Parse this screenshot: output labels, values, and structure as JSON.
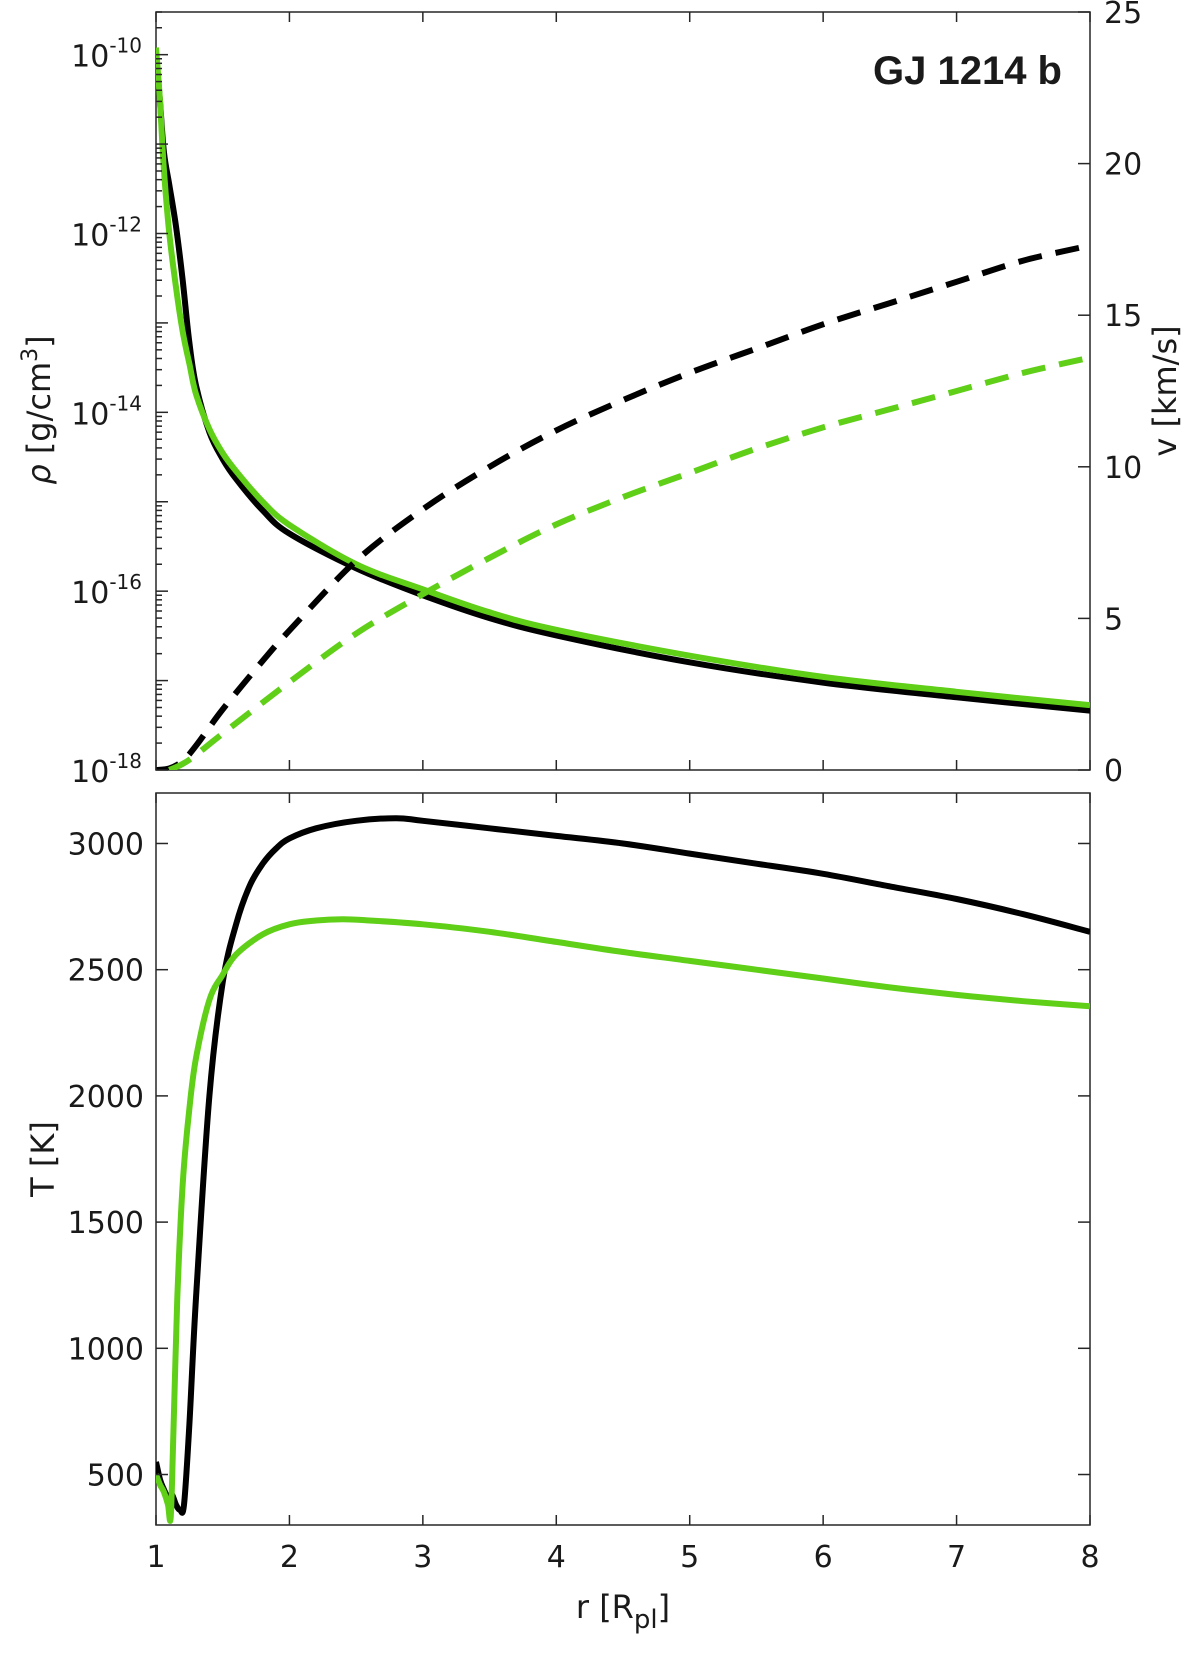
{
  "colors": {
    "model_a": "#000000",
    "model_b": "#5fcf17",
    "axis": "#262626"
  },
  "chart_data": [
    {
      "type": "line",
      "title": "GJ 1214 b",
      "xlabel": "",
      "ylabel_left": "ρ [g/cm³]",
      "ylabel_left_parts": {
        "symbol": "ρ",
        "unit_pre": " [g/cm",
        "unit_sup": "3",
        "unit_post": "]"
      },
      "ylabel_right": "v [km/s]",
      "xlim": [
        1,
        8
      ],
      "ylim_left": [
        1e-18,
        3e-10
      ],
      "yscale_left": "log",
      "ylim_right": [
        0,
        25
      ],
      "x_ticks": [
        1,
        2,
        3,
        4,
        5,
        6,
        7,
        8
      ],
      "y_left_ticks": [
        {
          "value": 1e-10,
          "base": "10",
          "exp": "-10"
        },
        {
          "value": 1e-12,
          "base": "10",
          "exp": "-12"
        },
        {
          "value": 1e-14,
          "base": "10",
          "exp": "-14"
        },
        {
          "value": 1e-16,
          "base": "10",
          "exp": "-16"
        },
        {
          "value": 1e-18,
          "base": "10",
          "exp": "-18"
        }
      ],
      "y_right_ticks": [
        0,
        5,
        10,
        15,
        20,
        25
      ],
      "series": [
        {
          "quantity": "density",
          "axis": "left",
          "style": "solid",
          "color": "#000000",
          "x": [
            1.0,
            1.03,
            1.06,
            1.1,
            1.15,
            1.2,
            1.25,
            1.3,
            1.4,
            1.5,
            1.6,
            1.8,
            2.0,
            2.5,
            3.0,
            3.5,
            4.0,
            5.0,
            6.0,
            7.0,
            8.0
          ],
          "y": [
            1e-10,
            3e-11,
            8e-12,
            3.5e-12,
            1.2e-12,
            3e-13,
            6e-14,
            2e-14,
            6e-15,
            3e-15,
            1.8e-15,
            8e-16,
            4.4e-16,
            1.8e-16,
            9e-17,
            5e-17,
            3.2e-17,
            1.6e-17,
            9.5e-18,
            6.5e-18,
            4.6e-18
          ]
        },
        {
          "quantity": "density",
          "axis": "left",
          "style": "solid",
          "color": "#5fcf17",
          "x": [
            1.0,
            1.03,
            1.06,
            1.1,
            1.15,
            1.2,
            1.25,
            1.3,
            1.4,
            1.5,
            1.6,
            1.8,
            2.0,
            2.5,
            3.0,
            3.5,
            4.0,
            5.0,
            6.0,
            7.0,
            8.0
          ],
          "y": [
            1.2e-10,
            3e-11,
            5e-12,
            1e-12,
            2.5e-13,
            8e-14,
            3.5e-14,
            1.6e-14,
            6.5e-15,
            3.5e-15,
            2.2e-15,
            1e-15,
            5.5e-16,
            2e-16,
            1.05e-16,
            5.8e-17,
            3.7e-17,
            1.9e-17,
            1.1e-17,
            7.5e-18,
            5.3e-18
          ]
        },
        {
          "quantity": "velocity",
          "axis": "right",
          "style": "dashed",
          "color": "#000000",
          "x": [
            1.0,
            1.1,
            1.2,
            1.3,
            1.5,
            1.8,
            2.0,
            2.5,
            3.0,
            3.5,
            4.0,
            4.5,
            5.0,
            5.5,
            6.0,
            6.5,
            7.0,
            7.5,
            8.0
          ],
          "y": [
            0.0,
            0.05,
            0.3,
            0.8,
            2.0,
            3.6,
            4.6,
            6.9,
            8.6,
            10.0,
            11.2,
            12.2,
            13.1,
            13.9,
            14.7,
            15.4,
            16.1,
            16.8,
            17.3
          ]
        },
        {
          "quantity": "velocity",
          "axis": "right",
          "style": "dashed",
          "color": "#5fcf17",
          "x": [
            1.1,
            1.2,
            1.3,
            1.5,
            2.0,
            2.5,
            3.0,
            3.5,
            4.0,
            4.5,
            5.0,
            5.5,
            6.0,
            6.5,
            7.0,
            7.5,
            8.0
          ],
          "y": [
            0.0,
            0.2,
            0.5,
            1.2,
            2.9,
            4.5,
            5.8,
            7.0,
            8.1,
            9.0,
            9.8,
            10.6,
            11.3,
            11.9,
            12.5,
            13.1,
            13.6
          ]
        }
      ]
    },
    {
      "type": "line",
      "xlabel": "r [Rpl]",
      "xlabel_parts": {
        "pre": "r [R",
        "sub": "pl",
        "post": "]"
      },
      "ylabel": "T [K]",
      "xlim": [
        1,
        8
      ],
      "ylim": [
        300,
        3200
      ],
      "x_ticks": [
        1,
        2,
        3,
        4,
        5,
        6,
        7,
        8
      ],
      "y_ticks": [
        500,
        1000,
        1500,
        2000,
        2500,
        3000
      ],
      "series": [
        {
          "quantity": "temperature",
          "style": "solid",
          "color": "#000000",
          "x": [
            1.0,
            1.03,
            1.06,
            1.09,
            1.12,
            1.15,
            1.18,
            1.21,
            1.25,
            1.3,
            1.4,
            1.5,
            1.6,
            1.7,
            1.8,
            1.9,
            2.0,
            2.2,
            2.5,
            2.8,
            3.0,
            3.5,
            4.0,
            4.5,
            5.0,
            5.5,
            6.0,
            6.5,
            7.0,
            7.5,
            8.0
          ],
          "y": [
            550,
            480,
            440,
            410,
            420,
            380,
            360,
            380,
            700,
            1200,
            2000,
            2450,
            2680,
            2830,
            2920,
            2980,
            3020,
            3060,
            3090,
            3100,
            3090,
            3060,
            3030,
            3000,
            2960,
            2920,
            2880,
            2830,
            2780,
            2720,
            2650
          ]
        },
        {
          "quantity": "temperature",
          "style": "solid",
          "color": "#5fcf17",
          "x": [
            1.0,
            1.03,
            1.06,
            1.09,
            1.11,
            1.13,
            1.16,
            1.2,
            1.25,
            1.3,
            1.4,
            1.5,
            1.6,
            1.8,
            2.0,
            2.2,
            2.4,
            2.6,
            3.0,
            3.5,
            4.0,
            4.5,
            5.0,
            5.5,
            6.0,
            6.5,
            7.0,
            7.5,
            8.0
          ],
          "y": [
            500,
            460,
            430,
            380,
            330,
            650,
            1200,
            1650,
            1950,
            2150,
            2380,
            2480,
            2560,
            2640,
            2680,
            2695,
            2700,
            2695,
            2680,
            2650,
            2610,
            2570,
            2535,
            2500,
            2465,
            2430,
            2400,
            2375,
            2355
          ]
        }
      ]
    }
  ]
}
